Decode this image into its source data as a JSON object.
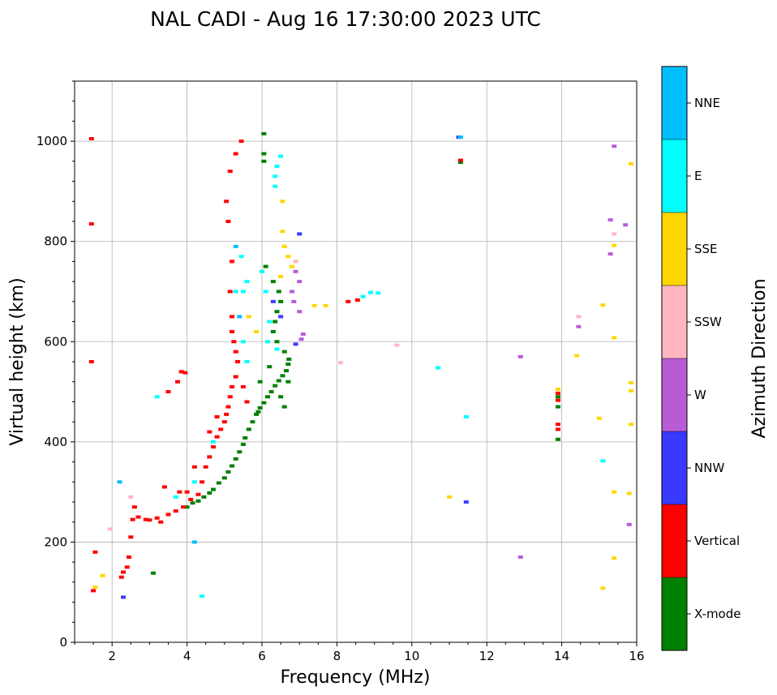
{
  "chart_data": {
    "type": "scatter",
    "title": "NAL CADI - Aug 16 17:30:00 2023 UTC",
    "xlabel": "Frequency (MHz)",
    "ylabel": "Virtual height (km)",
    "xlim": [
      1,
      16
    ],
    "ylim": [
      0,
      1120
    ],
    "xticks": [
      2,
      4,
      6,
      8,
      10,
      12,
      14,
      16
    ],
    "yticks": [
      0,
      200,
      400,
      600,
      800,
      1000
    ],
    "grid": true,
    "colorbar": {
      "label": "Azimuth Direction",
      "categories": [
        "X-mode",
        "Vertical",
        "NNW",
        "W",
        "SSW",
        "SSE",
        "E",
        "NNE"
      ],
      "colors": [
        "#008000",
        "#ff0000",
        "#3a3aff",
        "#b85cd6",
        "#ffb6c1",
        "#ffd700",
        "#00ffff",
        "#00bfff"
      ]
    },
    "series": [
      {
        "name": "X-mode",
        "points": [
          [
            4.0,
            270
          ],
          [
            4.15,
            278
          ],
          [
            4.3,
            282
          ],
          [
            4.45,
            290
          ],
          [
            4.6,
            298
          ],
          [
            4.7,
            305
          ],
          [
            4.85,
            318
          ],
          [
            5.0,
            328
          ],
          [
            5.1,
            340
          ],
          [
            5.2,
            352
          ],
          [
            5.3,
            366
          ],
          [
            5.4,
            380
          ],
          [
            5.5,
            395
          ],
          [
            5.55,
            408
          ],
          [
            5.65,
            425
          ],
          [
            5.75,
            440
          ],
          [
            5.85,
            455
          ],
          [
            5.95,
            468
          ],
          [
            6.05,
            478
          ],
          [
            6.15,
            490
          ],
          [
            6.25,
            500
          ],
          [
            6.35,
            512
          ],
          [
            6.45,
            522
          ],
          [
            6.55,
            532
          ],
          [
            6.65,
            542
          ],
          [
            6.7,
            555
          ],
          [
            6.72,
            565
          ],
          [
            6.6,
            580
          ],
          [
            6.4,
            600
          ],
          [
            6.3,
            620
          ],
          [
            6.35,
            640
          ],
          [
            6.4,
            660
          ],
          [
            6.5,
            680
          ],
          [
            6.45,
            700
          ],
          [
            6.3,
            720
          ],
          [
            6.1,
            750
          ],
          [
            6.05,
            960
          ],
          [
            6.05,
            975
          ],
          [
            11.3,
            958
          ],
          [
            13.9,
            470
          ],
          [
            13.9,
            490
          ],
          [
            13.9,
            405
          ],
          [
            5.9,
            460
          ],
          [
            6.6,
            470
          ],
          [
            6.5,
            490
          ],
          [
            5.95,
            520
          ],
          [
            6.2,
            550
          ],
          [
            6.7,
            520
          ],
          [
            6.05,
            1015
          ],
          [
            3.1,
            138
          ]
        ]
      },
      {
        "name": "Vertical",
        "points": [
          [
            1.45,
            1005
          ],
          [
            1.45,
            835
          ],
          [
            1.45,
            560
          ],
          [
            1.5,
            103
          ],
          [
            1.55,
            180
          ],
          [
            2.25,
            130
          ],
          [
            2.3,
            140
          ],
          [
            2.4,
            150
          ],
          [
            2.45,
            170
          ],
          [
            2.5,
            210
          ],
          [
            2.55,
            245
          ],
          [
            2.6,
            270
          ],
          [
            2.7,
            250
          ],
          [
            2.9,
            245
          ],
          [
            3.0,
            244
          ],
          [
            3.2,
            248
          ],
          [
            3.3,
            240
          ],
          [
            3.5,
            255
          ],
          [
            3.7,
            262
          ],
          [
            3.9,
            270
          ],
          [
            4.1,
            285
          ],
          [
            4.3,
            295
          ],
          [
            4.4,
            320
          ],
          [
            4.5,
            350
          ],
          [
            4.6,
            370
          ],
          [
            4.7,
            390
          ],
          [
            4.8,
            410
          ],
          [
            4.9,
            425
          ],
          [
            5.0,
            440
          ],
          [
            5.05,
            455
          ],
          [
            5.1,
            470
          ],
          [
            5.15,
            490
          ],
          [
            5.2,
            510
          ],
          [
            5.3,
            530
          ],
          [
            5.35,
            560
          ],
          [
            5.3,
            580
          ],
          [
            5.25,
            600
          ],
          [
            5.2,
            620
          ],
          [
            5.2,
            650
          ],
          [
            5.15,
            700
          ],
          [
            5.2,
            760
          ],
          [
            5.1,
            840
          ],
          [
            5.05,
            880
          ],
          [
            5.15,
            940
          ],
          [
            5.3,
            975
          ],
          [
            5.45,
            1000
          ],
          [
            3.75,
            520
          ],
          [
            3.85,
            540
          ],
          [
            3.95,
            538
          ],
          [
            3.5,
            500
          ],
          [
            8.3,
            680
          ],
          [
            8.55,
            683
          ],
          [
            11.3,
            962
          ],
          [
            13.9,
            425
          ],
          [
            13.9,
            435
          ],
          [
            13.9,
            483
          ],
          [
            13.9,
            497
          ],
          [
            4.6,
            420
          ],
          [
            4.8,
            450
          ],
          [
            5.6,
            480
          ],
          [
            5.5,
            510
          ],
          [
            4.2,
            350
          ],
          [
            4.0,
            300
          ],
          [
            3.4,
            310
          ],
          [
            3.8,
            300
          ]
        ]
      },
      {
        "name": "NNW",
        "points": [
          [
            2.3,
            90
          ],
          [
            7.0,
            815
          ],
          [
            6.3,
            680
          ],
          [
            6.9,
            595
          ],
          [
            11.45,
            280
          ],
          [
            11.25,
            1008
          ],
          [
            6.5,
            650
          ]
        ]
      },
      {
        "name": "W",
        "points": [
          [
            6.8,
            700
          ],
          [
            6.85,
            680
          ],
          [
            7.0,
            660
          ],
          [
            7.1,
            615
          ],
          [
            7.05,
            605
          ],
          [
            12.9,
            570
          ],
          [
            12.9,
            170
          ],
          [
            14.45,
            630
          ],
          [
            15.4,
            990
          ],
          [
            15.3,
            843
          ],
          [
            15.7,
            833
          ],
          [
            15.3,
            775
          ],
          [
            15.8,
            235
          ],
          [
            6.9,
            740
          ],
          [
            7.0,
            720
          ]
        ]
      },
      {
        "name": "SSW",
        "points": [
          [
            1.95,
            226
          ],
          [
            2.5,
            290
          ],
          [
            8.1,
            558
          ],
          [
            9.6,
            593
          ],
          [
            14.45,
            650
          ],
          [
            15.4,
            815
          ],
          [
            6.9,
            760
          ]
        ]
      },
      {
        "name": "SSE",
        "points": [
          [
            1.55,
            110
          ],
          [
            1.75,
            133
          ],
          [
            6.55,
            820
          ],
          [
            6.6,
            790
          ],
          [
            6.7,
            770
          ],
          [
            6.8,
            750
          ],
          [
            6.5,
            730
          ],
          [
            7.4,
            672
          ],
          [
            7.7,
            672
          ],
          [
            13.9,
            505
          ],
          [
            14.4,
            572
          ],
          [
            15.1,
            673
          ],
          [
            15.4,
            792
          ],
          [
            15.4,
            608
          ],
          [
            15.0,
            447
          ],
          [
            15.4,
            300
          ],
          [
            15.8,
            297
          ],
          [
            15.4,
            168
          ],
          [
            15.1,
            108
          ],
          [
            15.85,
            955
          ],
          [
            15.85,
            518
          ],
          [
            15.85,
            502
          ],
          [
            15.85,
            435
          ],
          [
            11.0,
            290
          ],
          [
            6.55,
            880
          ],
          [
            5.65,
            650
          ],
          [
            5.85,
            620
          ]
        ]
      },
      {
        "name": "E",
        "points": [
          [
            8.7,
            690
          ],
          [
            8.9,
            698
          ],
          [
            9.1,
            697
          ],
          [
            6.35,
            930
          ],
          [
            6.35,
            910
          ],
          [
            6.4,
            950
          ],
          [
            6.5,
            970
          ],
          [
            10.7,
            548
          ],
          [
            11.45,
            450
          ],
          [
            15.1,
            362
          ],
          [
            4.4,
            92
          ],
          [
            3.2,
            490
          ],
          [
            6.0,
            740
          ],
          [
            6.1,
            700
          ],
          [
            6.2,
            640
          ],
          [
            6.15,
            600
          ],
          [
            6.4,
            585
          ],
          [
            5.6,
            560
          ],
          [
            5.5,
            600
          ],
          [
            5.5,
            700
          ],
          [
            5.3,
            700
          ],
          [
            5.45,
            770
          ],
          [
            5.6,
            720
          ],
          [
            4.7,
            400
          ],
          [
            4.2,
            320
          ],
          [
            3.7,
            290
          ]
        ]
      },
      {
        "name": "NNE",
        "points": [
          [
            11.3,
            1008
          ],
          [
            2.2,
            320
          ],
          [
            4.2,
            200
          ],
          [
            5.3,
            790
          ],
          [
            5.4,
            650
          ]
        ]
      }
    ]
  }
}
